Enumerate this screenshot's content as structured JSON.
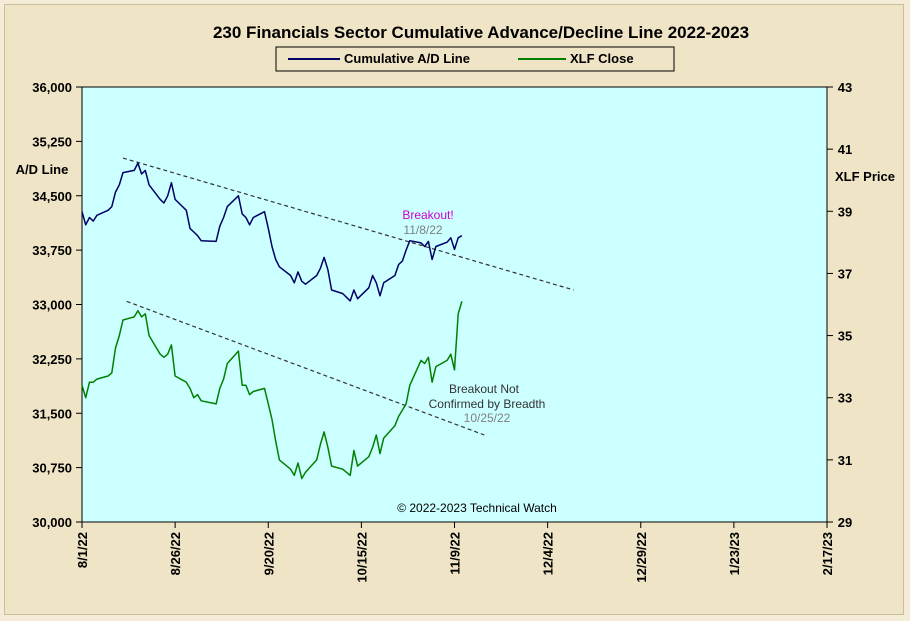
{
  "chart_data": {
    "type": "line",
    "title": "230 Financials  Sector Cumulative  Advance/Decline  Line 2022-2023",
    "legend_placement": "top-center",
    "grid": false,
    "colors": {
      "plot_bg": "#ccffff",
      "ad_line": "#000066",
      "xlf": "#008000",
      "note_breakout": "#cc00cc",
      "note_date": "#808080"
    },
    "x_ticks": [
      "8/1/22",
      "8/26/22",
      "9/20/22",
      "10/15/22",
      "11/9/22",
      "12/4/22",
      "12/29/22",
      "1/23/23",
      "2/17/23"
    ],
    "x_range": [
      "2022-08-01",
      "2023-02-17"
    ],
    "left_axis": {
      "label": "A/D Line",
      "range": [
        30000,
        36000
      ],
      "ticks": [
        "30,000",
        "30,750",
        "31,500",
        "32,250",
        "33,000",
        "33,750",
        "34,500",
        "35,250",
        "36,000"
      ]
    },
    "right_axis": {
      "label": "XLF Price",
      "range": [
        29,
        43
      ],
      "ticks": [
        "29",
        "31",
        "33",
        "35",
        "37",
        "39",
        "41",
        "43"
      ]
    },
    "series": [
      {
        "name": "Cumulative A/D Line",
        "axis": "left",
        "points": [
          [
            "2022-08-01",
            34280
          ],
          [
            "2022-08-02",
            34100
          ],
          [
            "2022-08-03",
            34200
          ],
          [
            "2022-08-04",
            34150
          ],
          [
            "2022-08-05",
            34230
          ],
          [
            "2022-08-08",
            34300
          ],
          [
            "2022-08-09",
            34350
          ],
          [
            "2022-08-10",
            34550
          ],
          [
            "2022-08-11",
            34650
          ],
          [
            "2022-08-12",
            34820
          ],
          [
            "2022-08-15",
            34850
          ],
          [
            "2022-08-16",
            34950
          ],
          [
            "2022-08-17",
            34800
          ],
          [
            "2022-08-18",
            34850
          ],
          [
            "2022-08-19",
            34650
          ],
          [
            "2022-08-22",
            34450
          ],
          [
            "2022-08-23",
            34400
          ],
          [
            "2022-08-24",
            34500
          ],
          [
            "2022-08-25",
            34680
          ],
          [
            "2022-08-26",
            34450
          ],
          [
            "2022-08-29",
            34300
          ],
          [
            "2022-08-30",
            34050
          ],
          [
            "2022-08-31",
            34000
          ],
          [
            "2022-09-01",
            33950
          ],
          [
            "2022-09-02",
            33880
          ],
          [
            "2022-09-06",
            33870
          ],
          [
            "2022-09-07",
            34080
          ],
          [
            "2022-09-08",
            34200
          ],
          [
            "2022-09-09",
            34350
          ],
          [
            "2022-09-12",
            34500
          ],
          [
            "2022-09-13",
            34250
          ],
          [
            "2022-09-14",
            34200
          ],
          [
            "2022-09-15",
            34100
          ],
          [
            "2022-09-16",
            34200
          ],
          [
            "2022-09-19",
            34280
          ],
          [
            "2022-09-20",
            34050
          ],
          [
            "2022-09-21",
            33800
          ],
          [
            "2022-09-22",
            33620
          ],
          [
            "2022-09-23",
            33520
          ],
          [
            "2022-09-26",
            33400
          ],
          [
            "2022-09-27",
            33300
          ],
          [
            "2022-09-28",
            33450
          ],
          [
            "2022-09-29",
            33320
          ],
          [
            "2022-09-30",
            33280
          ],
          [
            "2022-10-03",
            33400
          ],
          [
            "2022-10-04",
            33500
          ],
          [
            "2022-10-05",
            33650
          ],
          [
            "2022-10-06",
            33480
          ],
          [
            "2022-10-07",
            33200
          ],
          [
            "2022-10-10",
            33150
          ],
          [
            "2022-10-11",
            33100
          ],
          [
            "2022-10-12",
            33050
          ],
          [
            "2022-10-13",
            33200
          ],
          [
            "2022-10-14",
            33080
          ],
          [
            "2022-10-17",
            33230
          ],
          [
            "2022-10-18",
            33400
          ],
          [
            "2022-10-19",
            33300
          ],
          [
            "2022-10-20",
            33120
          ],
          [
            "2022-10-21",
            33300
          ],
          [
            "2022-10-24",
            33400
          ],
          [
            "2022-10-25",
            33550
          ],
          [
            "2022-10-26",
            33600
          ],
          [
            "2022-10-27",
            33750
          ],
          [
            "2022-10-28",
            33880
          ],
          [
            "2022-10-31",
            33850
          ],
          [
            "2022-11-01",
            33800
          ],
          [
            "2022-11-02",
            33870
          ],
          [
            "2022-11-03",
            33620
          ],
          [
            "2022-11-04",
            33800
          ],
          [
            "2022-11-07",
            33860
          ],
          [
            "2022-11-08",
            33920
          ],
          [
            "2022-11-09",
            33760
          ],
          [
            "2022-11-10",
            33920
          ],
          [
            "2022-11-11",
            33950
          ]
        ]
      },
      {
        "name": "XLF Close",
        "axis": "right",
        "points": [
          [
            "2022-08-01",
            33.4
          ],
          [
            "2022-08-02",
            33.0
          ],
          [
            "2022-08-03",
            33.5
          ],
          [
            "2022-08-04",
            33.5
          ],
          [
            "2022-08-05",
            33.6
          ],
          [
            "2022-08-08",
            33.7
          ],
          [
            "2022-08-09",
            33.8
          ],
          [
            "2022-08-10",
            34.6
          ],
          [
            "2022-08-11",
            35.0
          ],
          [
            "2022-08-12",
            35.5
          ],
          [
            "2022-08-15",
            35.6
          ],
          [
            "2022-08-16",
            35.8
          ],
          [
            "2022-08-17",
            35.6
          ],
          [
            "2022-08-18",
            35.7
          ],
          [
            "2022-08-19",
            35.0
          ],
          [
            "2022-08-22",
            34.4
          ],
          [
            "2022-08-23",
            34.3
          ],
          [
            "2022-08-24",
            34.4
          ],
          [
            "2022-08-25",
            34.7
          ],
          [
            "2022-08-26",
            33.7
          ],
          [
            "2022-08-29",
            33.5
          ],
          [
            "2022-08-30",
            33.3
          ],
          [
            "2022-08-31",
            33.0
          ],
          [
            "2022-09-01",
            33.1
          ],
          [
            "2022-09-02",
            32.9
          ],
          [
            "2022-09-06",
            32.8
          ],
          [
            "2022-09-07",
            33.3
          ],
          [
            "2022-09-08",
            33.6
          ],
          [
            "2022-09-09",
            34.1
          ],
          [
            "2022-09-12",
            34.5
          ],
          [
            "2022-09-13",
            33.4
          ],
          [
            "2022-09-14",
            33.4
          ],
          [
            "2022-09-15",
            33.1
          ],
          [
            "2022-09-16",
            33.2
          ],
          [
            "2022-09-19",
            33.3
          ],
          [
            "2022-09-20",
            32.8
          ],
          [
            "2022-09-21",
            32.3
          ],
          [
            "2022-09-22",
            31.6
          ],
          [
            "2022-09-23",
            31.0
          ],
          [
            "2022-09-26",
            30.7
          ],
          [
            "2022-09-27",
            30.5
          ],
          [
            "2022-09-28",
            30.9
          ],
          [
            "2022-09-29",
            30.4
          ],
          [
            "2022-09-30",
            30.6
          ],
          [
            "2022-10-03",
            31.0
          ],
          [
            "2022-10-04",
            31.5
          ],
          [
            "2022-10-05",
            31.9
          ],
          [
            "2022-10-06",
            31.4
          ],
          [
            "2022-10-07",
            30.8
          ],
          [
            "2022-10-10",
            30.7
          ],
          [
            "2022-10-11",
            30.6
          ],
          [
            "2022-10-12",
            30.5
          ],
          [
            "2022-10-13",
            31.3
          ],
          [
            "2022-10-14",
            30.8
          ],
          [
            "2022-10-17",
            31.1
          ],
          [
            "2022-10-18",
            31.4
          ],
          [
            "2022-10-19",
            31.8
          ],
          [
            "2022-10-20",
            31.2
          ],
          [
            "2022-10-21",
            31.7
          ],
          [
            "2022-10-24",
            32.1
          ],
          [
            "2022-10-25",
            32.4
          ],
          [
            "2022-10-26",
            32.6
          ],
          [
            "2022-10-27",
            32.8
          ],
          [
            "2022-10-28",
            33.4
          ],
          [
            "2022-10-31",
            34.2
          ],
          [
            "2022-11-01",
            34.1
          ],
          [
            "2022-11-02",
            34.3
          ],
          [
            "2022-11-03",
            33.5
          ],
          [
            "2022-11-04",
            34.0
          ],
          [
            "2022-11-07",
            34.2
          ],
          [
            "2022-11-08",
            34.4
          ],
          [
            "2022-11-09",
            33.9
          ],
          [
            "2022-11-10",
            35.7
          ],
          [
            "2022-11-11",
            36.1
          ]
        ]
      }
    ],
    "trendlines": [
      {
        "axis": "left",
        "from": [
          "2022-08-12",
          35020
        ],
        "to": [
          "2022-12-11",
          33200
        ]
      },
      {
        "axis": "right",
        "from": [
          "2022-08-13",
          36.1
        ],
        "to": [
          "2022-11-17",
          31.8
        ]
      }
    ],
    "annotations": {
      "breakout": "Breakout!",
      "breakout_date": "11/8/22",
      "not_confirmed_1": "Breakout Not",
      "not_confirmed_2": "Confirmed  by Breadth",
      "not_confirmed_date": "10/25/22",
      "copyright": "© 2022-2023  Technical Watch"
    }
  }
}
